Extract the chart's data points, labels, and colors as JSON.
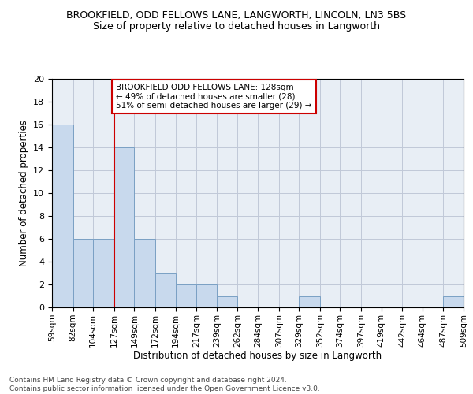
{
  "title": "BROOKFIELD, ODD FELLOWS LANE, LANGWORTH, LINCOLN, LN3 5BS",
  "subtitle": "Size of property relative to detached houses in Langworth",
  "xlabel": "Distribution of detached houses by size in Langworth",
  "ylabel": "Number of detached properties",
  "bar_color": "#c8d9ed",
  "bar_edge_color": "#7aA0c4",
  "background_color": "#ffffff",
  "grid_color": "#c0c8d8",
  "bins": [
    59,
    82,
    104,
    127,
    149,
    172,
    194,
    217,
    239,
    262,
    284,
    307,
    329,
    352,
    374,
    397,
    419,
    442,
    464,
    487,
    509
  ],
  "bin_labels": [
    "59sqm",
    "82sqm",
    "104sqm",
    "127sqm",
    "149sqm",
    "172sqm",
    "194sqm",
    "217sqm",
    "239sqm",
    "262sqm",
    "284sqm",
    "307sqm",
    "329sqm",
    "352sqm",
    "374sqm",
    "397sqm",
    "419sqm",
    "442sqm",
    "464sqm",
    "487sqm",
    "509sqm"
  ],
  "counts": [
    16,
    6,
    6,
    14,
    6,
    3,
    2,
    2,
    1,
    0,
    0,
    0,
    1,
    0,
    0,
    0,
    0,
    0,
    0,
    1
  ],
  "ylim": [
    0,
    20
  ],
  "yticks": [
    0,
    2,
    4,
    6,
    8,
    10,
    12,
    14,
    16,
    18,
    20
  ],
  "property_line_x": 127,
  "annotation_line1": "BROOKFIELD ODD FELLOWS LANE: 128sqm",
  "annotation_line2": "← 49% of detached houses are smaller (28)",
  "annotation_line3": "51% of semi-detached houses are larger (29) →",
  "annotation_box_color": "#ffffff",
  "annotation_box_edge": "#cc0000",
  "red_line_color": "#cc0000",
  "footer_line1": "Contains HM Land Registry data © Crown copyright and database right 2024.",
  "footer_line2": "Contains public sector information licensed under the Open Government Licence v3.0."
}
